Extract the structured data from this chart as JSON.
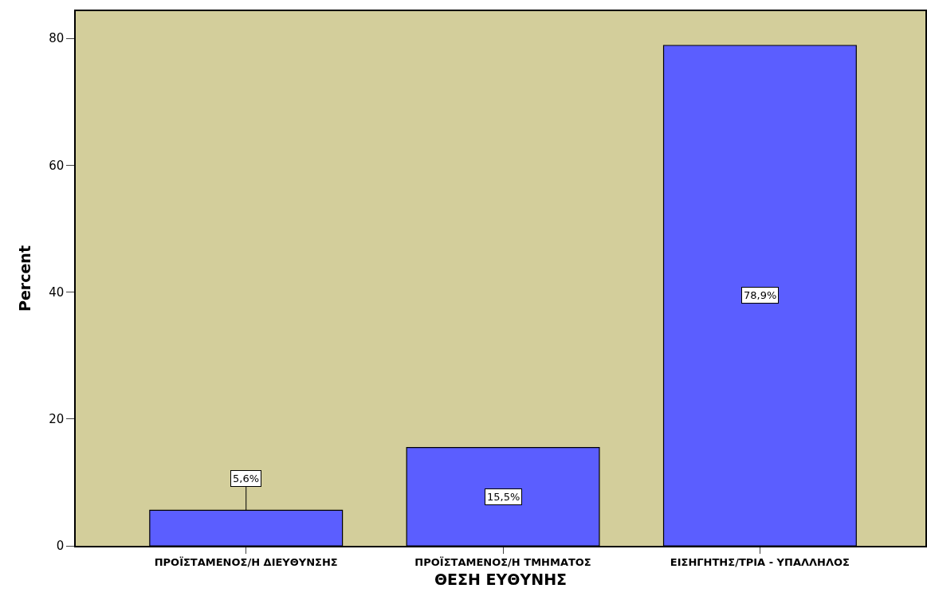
{
  "chart_data": {
    "type": "bar",
    "xlabel": "ΘΕΣΗ ΕΥΘΥΝΗΣ",
    "ylabel": "Percent",
    "categories": [
      "ΠΡΟΪΣΤΑΜΕΝΟΣ/Η ΔΙΕΥΘΥΝΣΗΣ",
      "ΠΡΟΪΣΤΑΜΕΝΟΣ/Η ΤΜΗΜΑΤΟΣ",
      "ΕΙΣΗΓΗΤΗΣ/ΤΡΙΑ - ΥΠΑΛΛΗΛΟΣ"
    ],
    "values": [
      5.6,
      15.5,
      78.9
    ],
    "value_labels": [
      "5,6%",
      "15,5%",
      "78,9%"
    ],
    "color": "#5b5eff",
    "ylim": [
      0,
      84.3
    ],
    "yticks": [
      0,
      20,
      40,
      60,
      80
    ],
    "grid": false
  }
}
